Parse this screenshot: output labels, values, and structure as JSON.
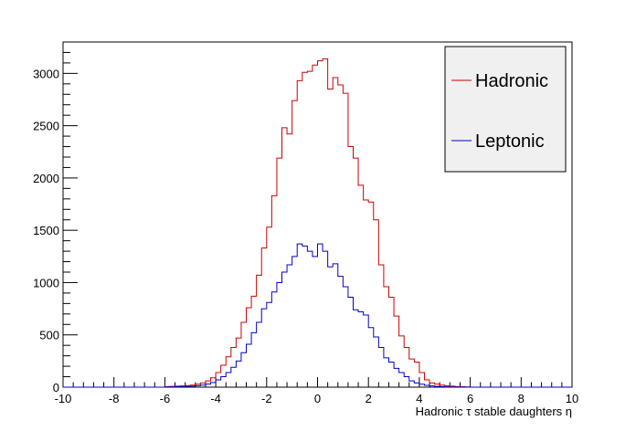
{
  "chart_data": {
    "type": "line",
    "xlabel": "Hadronic τ stable daughters η",
    "xlim": [
      -10,
      10
    ],
    "ylim": [
      0,
      3300
    ],
    "x_ticks": [
      "-10",
      "-8",
      "-6",
      "-4",
      "-2",
      "0",
      "2",
      "4",
      "6",
      "8",
      "10"
    ],
    "y_ticks": [
      "0",
      "500",
      "1000",
      "1500",
      "2000",
      "2500",
      "3000"
    ],
    "bin_width": 0.2,
    "bins_low_edge": [
      -6.0,
      -5.8,
      -5.6,
      -5.4,
      -5.2,
      -5.0,
      -4.8,
      -4.6,
      -4.4,
      -4.2,
      -4.0,
      -3.8,
      -3.6,
      -3.4,
      -3.2,
      -3.0,
      -2.8,
      -2.6,
      -2.4,
      -2.2,
      -2.0,
      -1.8,
      -1.6,
      -1.4,
      -1.2,
      -1.0,
      -0.8,
      -0.6,
      -0.4,
      -0.2,
      0.0,
      0.2,
      0.4,
      0.6,
      0.8,
      1.0,
      1.2,
      1.4,
      1.6,
      1.8,
      2.0,
      2.2,
      2.4,
      2.6,
      2.8,
      3.0,
      3.2,
      3.4,
      3.6,
      3.8,
      4.0,
      4.2,
      4.4,
      4.6,
      4.8,
      5.0,
      5.2,
      5.4,
      5.6,
      5.8
    ],
    "legend_position": "top-right",
    "series": [
      {
        "name": "Hadronic",
        "color": "#cc0000",
        "values": [
          5,
          8,
          10,
          12,
          15,
          20,
          28,
          40,
          60,
          90,
          140,
          210,
          290,
          380,
          470,
          620,
          760,
          870,
          1070,
          1330,
          1530,
          1830,
          2190,
          2480,
          2420,
          2740,
          2930,
          3010,
          3020,
          3080,
          3120,
          3140,
          2850,
          2960,
          2890,
          2810,
          2300,
          2190,
          1930,
          1790,
          1770,
          1600,
          1170,
          960,
          860,
          680,
          490,
          380,
          270,
          240,
          140,
          70,
          40,
          30,
          20,
          14,
          10,
          6,
          4,
          2
        ]
      },
      {
        "name": "Leptonic",
        "color": "#0000cc",
        "values": [
          2,
          3,
          4,
          6,
          8,
          10,
          14,
          20,
          30,
          45,
          70,
          100,
          140,
          190,
          250,
          330,
          410,
          520,
          620,
          750,
          810,
          910,
          1000,
          1100,
          1170,
          1250,
          1370,
          1350,
          1300,
          1250,
          1370,
          1300,
          1150,
          1180,
          1060,
          960,
          860,
          740,
          720,
          690,
          570,
          480,
          380,
          280,
          240,
          180,
          140,
          100,
          60,
          40,
          28,
          18,
          12,
          8,
          5,
          3,
          2,
          1,
          1,
          0
        ]
      }
    ]
  }
}
